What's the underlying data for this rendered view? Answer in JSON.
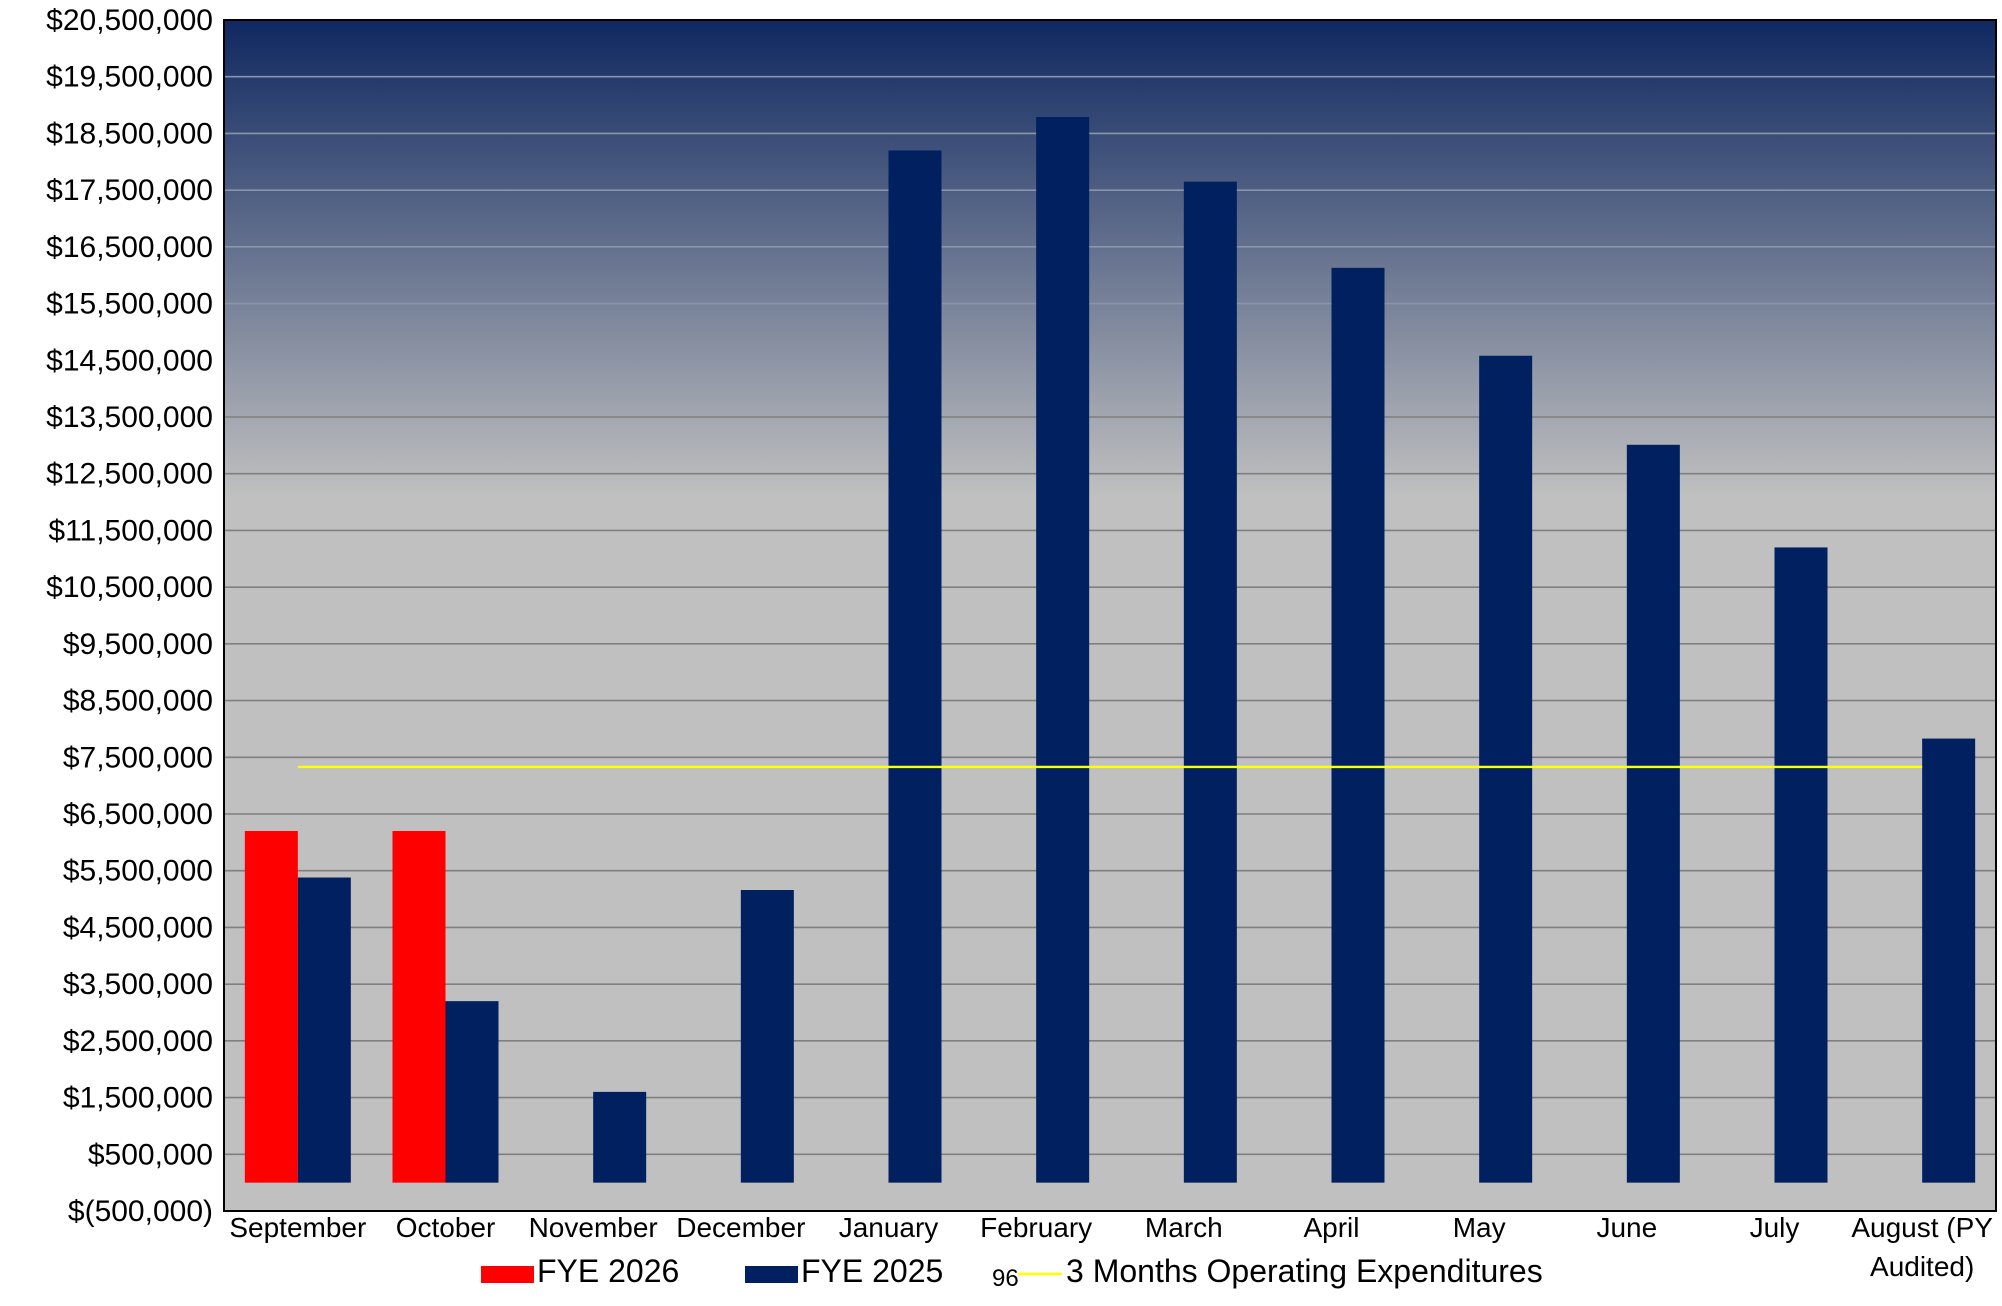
{
  "chart_data": {
    "type": "bar",
    "categories": [
      "September",
      "October",
      "November",
      "December",
      "January",
      "February",
      "March",
      "April",
      "May",
      "June",
      "July",
      "August (PY Audited)"
    ],
    "series": [
      {
        "name": "FYE 2026",
        "color": "#ff0000",
        "values": [
          6200000,
          6200000,
          null,
          null,
          null,
          null,
          null,
          null,
          null,
          null,
          null,
          null
        ]
      },
      {
        "name": "FYE 2025",
        "color": "#002060",
        "values": [
          5380000,
          3200000,
          1600000,
          5160000,
          18200000,
          18790000,
          17650000,
          16130000,
          14580000,
          13010000,
          11200000,
          7830000
        ]
      }
    ],
    "reference_line": {
      "name": "3 Months Operating  Expenditures",
      "value": 7330000,
      "color": "#ffff00",
      "marker_text": "96"
    },
    "ylim": [
      -500000,
      20500000
    ],
    "ytick_step": 1000000,
    "ytick_labels": [
      "$20,500,000",
      "$19,500,000",
      "$18,500,000",
      "$17,500,000",
      "$16,500,000",
      "$15,500,000",
      "$14,500,000",
      "$13,500,000",
      "$12,500,000",
      "$11,500,000",
      "$10,500,000",
      "$9,500,000",
      "$8,500,000",
      "$7,500,000",
      "$6,500,000",
      "$5,500,000",
      "$4,500,000",
      "$3,500,000",
      "$2,500,000",
      "$1,500,000",
      "$500,000",
      "$(500,000)"
    ],
    "xtick_labels": [
      [
        "September"
      ],
      [
        "October"
      ],
      [
        "November"
      ],
      [
        "December"
      ],
      [
        "January"
      ],
      [
        "February"
      ],
      [
        "March"
      ],
      [
        "April"
      ],
      [
        "May"
      ],
      [
        "June"
      ],
      [
        "July"
      ],
      [
        "August (PY",
        "Audited)"
      ]
    ],
    "grid": true,
    "legend_position": "bottom",
    "background_gradient": [
      "#0f2860",
      "#c0c0c0"
    ],
    "title": "",
    "xlabel": "",
    "ylabel": ""
  }
}
